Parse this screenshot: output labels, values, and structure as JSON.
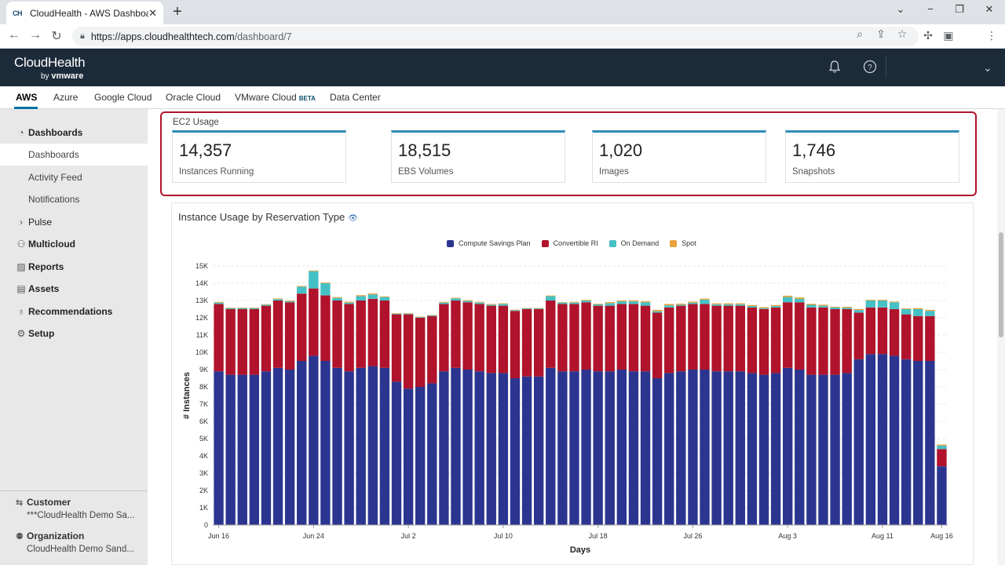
{
  "browser": {
    "tab_favicon": "CH",
    "tab_title": "CloudHealth - AWS Dashboard",
    "tab_close": "✕",
    "new_tab": "+",
    "url_host": "https://apps.cloudhealthtech.com",
    "url_path": "/dashboard/7",
    "win_minimize": "⌄",
    "win_restore": "−",
    "win_max": "❐",
    "win_close": "✕"
  },
  "app": {
    "logo": "CloudHealth",
    "logo_by": "by ",
    "logo_vendor": "vmware"
  },
  "cloud_tabs": [
    {
      "label": "AWS",
      "active": true
    },
    {
      "label": "Azure"
    },
    {
      "label": "Google Cloud"
    },
    {
      "label": "Oracle Cloud"
    },
    {
      "label": "VMware Cloud",
      "badge": "BETA"
    },
    {
      "label": "Data Center"
    }
  ],
  "sidebar": {
    "items": [
      {
        "label": "Dashboards",
        "icon": "dashboard-icon",
        "glyph": "◔",
        "bold": true
      },
      {
        "label": "Dashboards",
        "sub": true,
        "selected": true
      },
      {
        "label": "Activity Feed",
        "sub": true
      },
      {
        "label": "Notifications",
        "sub": true
      },
      {
        "label": "Pulse",
        "icon": "chevron-right-icon",
        "glyph": "›"
      },
      {
        "label": "Multicloud",
        "icon": "multicloud-icon",
        "glyph": "⚇",
        "bold": true
      },
      {
        "label": "Reports",
        "icon": "reports-icon",
        "glyph": "▨",
        "bold": true
      },
      {
        "label": "Assets",
        "icon": "assets-icon",
        "glyph": "▤",
        "bold": true
      },
      {
        "label": "Recommendations",
        "icon": "lightbulb-icon",
        "glyph": "♁",
        "bold": true
      },
      {
        "label": "Setup",
        "icon": "gear-icon",
        "glyph": "⚙",
        "bold": true
      }
    ],
    "customer_label": "Customer",
    "customer_value": "***CloudHealth Demo Sa...",
    "org_label": "Organization",
    "org_value": "CloudHealth Demo Sand..."
  },
  "ec2": {
    "title": "EC2 Usage",
    "cards": [
      {
        "value": "14,357",
        "label": "Instances Running"
      },
      {
        "value": "18,515",
        "label": "EBS Volumes"
      },
      {
        "value": "1,020",
        "label": "Images"
      },
      {
        "value": "1,746",
        "label": "Snapshots"
      }
    ]
  },
  "chart_title": "Instance Usage by Reservation Type",
  "colors": {
    "compute_savings_plan": "#2b3590",
    "convertible_ri": "#b0132b",
    "on_demand": "#45c1c6",
    "spot": "#e6a23c"
  },
  "chart_data": {
    "type": "bar",
    "stacked": true,
    "xlabel": "Days",
    "ylabel": "# Instances",
    "ylim": [
      0,
      15000
    ],
    "yticks": [
      "0",
      "1K",
      "2K",
      "3K",
      "4K",
      "5K",
      "6K",
      "7K",
      "8K",
      "9K",
      "10K",
      "11K",
      "12K",
      "13K",
      "14K",
      "15K"
    ],
    "xtick_labels": [
      "Jun 16",
      "Jun 24",
      "Jul 2",
      "Jul 10",
      "Jul 18",
      "Jul 26",
      "Aug 3",
      "Aug 11",
      "Aug 16"
    ],
    "xtick_index": [
      0,
      8,
      16,
      24,
      32,
      40,
      48,
      56,
      61
    ],
    "legend_position": "top",
    "categories": [
      "Jun 16",
      "Jun 17",
      "Jun 18",
      "Jun 19",
      "Jun 20",
      "Jun 21",
      "Jun 22",
      "Jun 23",
      "Jun 24",
      "Jun 25",
      "Jun 26",
      "Jun 27",
      "Jun 28",
      "Jun 29",
      "Jun 30",
      "Jul 1",
      "Jul 2",
      "Jul 3",
      "Jul 4",
      "Jul 5",
      "Jul 6",
      "Jul 7",
      "Jul 8",
      "Jul 9",
      "Jul 10",
      "Jul 11",
      "Jul 12",
      "Jul 13",
      "Jul 14",
      "Jul 15",
      "Jul 16",
      "Jul 17",
      "Jul 18",
      "Jul 19",
      "Jul 20",
      "Jul 21",
      "Jul 22",
      "Jul 23",
      "Jul 24",
      "Jul 25",
      "Jul 26",
      "Jul 27",
      "Jul 28",
      "Jul 29",
      "Jul 30",
      "Jul 31",
      "Aug 1",
      "Aug 2",
      "Aug 3",
      "Aug 4",
      "Aug 5",
      "Aug 6",
      "Aug 7",
      "Aug 8",
      "Aug 9",
      "Aug 10",
      "Aug 11",
      "Aug 12",
      "Aug 13",
      "Aug 14",
      "Aug 15",
      "Aug 16"
    ],
    "series": [
      {
        "name": "Compute Savings Plan",
        "values": [
          8900,
          8700,
          8700,
          8700,
          8900,
          9100,
          9000,
          9500,
          9800,
          9500,
          9100,
          8900,
          9100,
          9200,
          9100,
          8300,
          7900,
          8000,
          8200,
          8900,
          9100,
          9000,
          8900,
          8800,
          8800,
          8500,
          8600,
          8600,
          9100,
          8900,
          8900,
          9000,
          8900,
          8900,
          9000,
          8900,
          8900,
          8500,
          8800,
          8900,
          9000,
          9000,
          8900,
          8900,
          8900,
          8800,
          8700,
          8800,
          9100,
          9000,
          8700,
          8700,
          8700,
          8800,
          9600,
          9900,
          9900,
          9800,
          9600,
          9500,
          9500,
          3400
        ]
      },
      {
        "name": "Convertible RI",
        "values": [
          3900,
          3800,
          3800,
          3800,
          3800,
          3900,
          3900,
          3900,
          3900,
          3800,
          3900,
          3900,
          3900,
          3900,
          3900,
          3900,
          4300,
          4000,
          3900,
          3900,
          3900,
          3900,
          3900,
          3900,
          3900,
          3900,
          3900,
          3900,
          3900,
          3900,
          3900,
          3900,
          3800,
          3800,
          3800,
          3900,
          3800,
          3800,
          3800,
          3800,
          3800,
          3800,
          3800,
          3800,
          3800,
          3800,
          3800,
          3800,
          3800,
          3900,
          3900,
          3900,
          3800,
          3700,
          2700,
          2700,
          2700,
          2700,
          2600,
          2600,
          2600,
          1000
        ]
      },
      {
        "name": "On Demand",
        "values": [
          80,
          60,
          60,
          60,
          60,
          80,
          60,
          400,
          1000,
          700,
          150,
          80,
          250,
          250,
          200,
          40,
          40,
          40,
          40,
          80,
          120,
          80,
          80,
          60,
          100,
          40,
          40,
          40,
          250,
          80,
          80,
          100,
          80,
          150,
          150,
          150,
          200,
          80,
          120,
          60,
          80,
          250,
          80,
          80,
          80,
          80,
          60,
          80,
          300,
          200,
          150,
          100,
          100,
          80,
          150,
          400,
          400,
          400,
          300,
          400,
          300,
          200
        ]
      },
      {
        "name": "Spot",
        "values": [
          40,
          30,
          30,
          30,
          30,
          40,
          40,
          40,
          40,
          40,
          50,
          50,
          60,
          60,
          40,
          30,
          30,
          30,
          30,
          40,
          40,
          40,
          40,
          40,
          40,
          30,
          30,
          30,
          40,
          30,
          40,
          40,
          40,
          60,
          60,
          60,
          60,
          80,
          80,
          60,
          60,
          60,
          60,
          60,
          60,
          60,
          60,
          60,
          80,
          80,
          60,
          60,
          40,
          60,
          60,
          40,
          40,
          40,
          40,
          60,
          60,
          60
        ]
      }
    ]
  }
}
